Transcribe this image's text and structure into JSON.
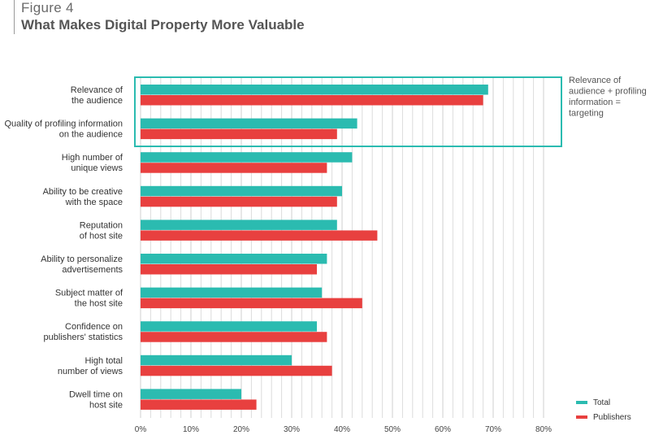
{
  "header": {
    "figure_label": "Figure 4",
    "title": "What Makes Digital Property More Valuable"
  },
  "chart_data": {
    "type": "bar",
    "orientation": "horizontal",
    "title": "What Makes Digital Property More Valuable",
    "categories": [
      [
        "Relevance of",
        "the audience"
      ],
      [
        "Quality of profiling information",
        "on the audience"
      ],
      [
        "High number of",
        "unique views"
      ],
      [
        "Ability to be creative",
        "with the space"
      ],
      [
        "Reputation",
        "of host site"
      ],
      [
        "Ability to personalize",
        "advertisements"
      ],
      [
        "Subject matter of",
        "the host site"
      ],
      [
        "Confidence on",
        "publishers' statistics"
      ],
      [
        "High total",
        "number of views"
      ],
      [
        "Dwell time on",
        "host site"
      ]
    ],
    "series": [
      {
        "name": "Total",
        "color": "#2bbbb0",
        "values": [
          69,
          43,
          42,
          40,
          39,
          37,
          36,
          35,
          30,
          20
        ]
      },
      {
        "name": "Publishers",
        "color": "#e8403f",
        "values": [
          68,
          39,
          37,
          39,
          47,
          35,
          44,
          37,
          38,
          23
        ]
      }
    ],
    "xlim": [
      0,
      80
    ],
    "xticks": [
      0,
      10,
      20,
      30,
      40,
      50,
      60,
      70,
      80
    ],
    "xtick_labels": [
      "0%",
      "10%",
      "20%",
      "30%",
      "40%",
      "50%",
      "60%",
      "70%",
      "80%"
    ],
    "grid": true,
    "legend_position": "bottom-right",
    "annotation": {
      "lines": [
        "Relevance of",
        "audience + profiling",
        "information =",
        "targeting"
      ],
      "highlight_color": "#2bbbb0",
      "highlight_categories": [
        0,
        1
      ]
    }
  }
}
